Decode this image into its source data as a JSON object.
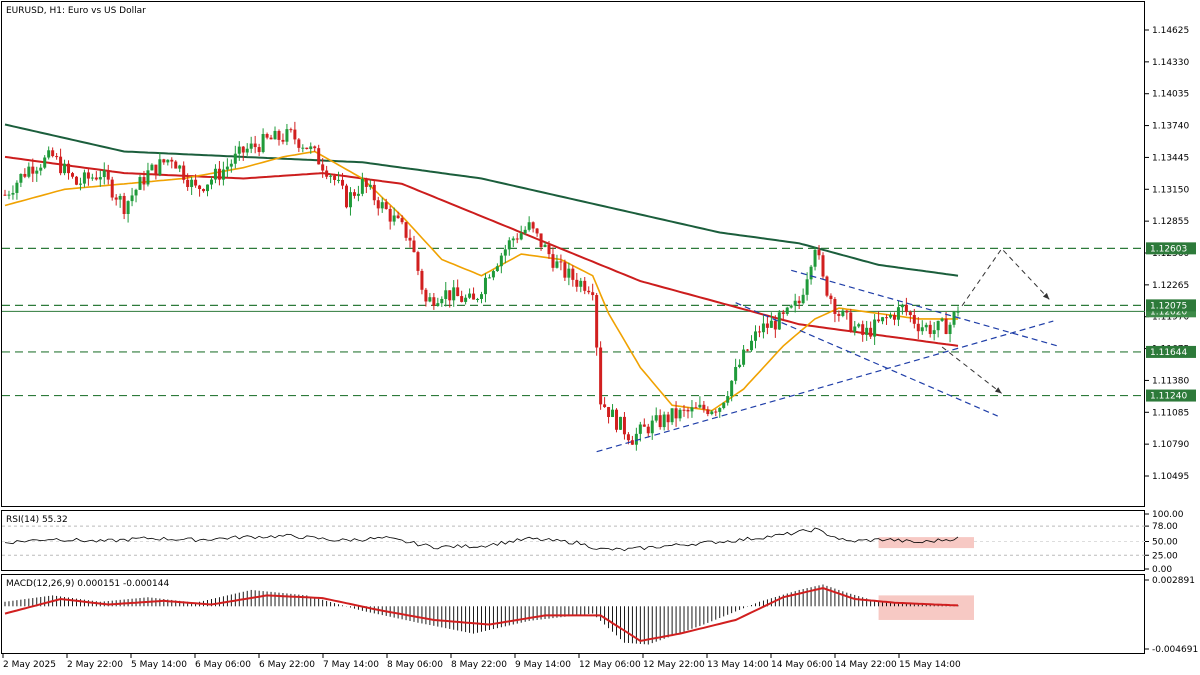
{
  "chart_data": {
    "type": "candlestick",
    "title": "EURUSD, H1:  Euro vs US Dollar",
    "colors": {
      "up": "#1f9a3a",
      "down": "#d11f1f",
      "ma_fast": "#f0a202",
      "ma_mid": "#cc1d1d",
      "ma_slow": "#1b5e3c",
      "trend": "#1f3ea8",
      "level": "#2d7a3a",
      "macd_signal": "#d11f1f",
      "highlight": "#f7c9c4"
    },
    "price_axis": {
      "range": [
        1.1035,
        1.148
      ],
      "ticks": [
        "1.14625",
        "1.14330",
        "1.14035",
        "1.13740",
        "1.13445",
        "1.13150",
        "1.12855",
        "1.12560",
        "1.12265",
        "1.11970",
        "1.11675",
        "1.11380",
        "1.11085",
        "1.10790",
        "1.10495"
      ]
    },
    "levels": [
      {
        "value": 1.12603,
        "label": "1.12603"
      },
      {
        "value": 1.12075,
        "label": "1.12075"
      },
      {
        "value": 1.11644,
        "label": "1.11644"
      },
      {
        "value": 1.1124,
        "label": "1.11240"
      }
    ],
    "current_price": {
      "value": 1.1202,
      "label": "1.12020"
    },
    "time_labels": [
      "2 May 2025",
      "2 May 22:00",
      "5 May 14:00",
      "6 May 06:00",
      "6 May 22:00",
      "7 May 14:00",
      "8 May 06:00",
      "8 May 22:00",
      "9 May 14:00",
      "12 May 06:00",
      "12 May 22:00",
      "13 May 14:00",
      "14 May 06:00",
      "14 May 22:00",
      "15 May 14:00"
    ],
    "price_anchors": [
      [
        0,
        1.131
      ],
      [
        6,
        1.1335
      ],
      [
        12,
        1.1345
      ],
      [
        18,
        1.132
      ],
      [
        24,
        1.133
      ],
      [
        30,
        1.13
      ],
      [
        36,
        1.133
      ],
      [
        42,
        1.1345
      ],
      [
        48,
        1.1315
      ],
      [
        54,
        1.133
      ],
      [
        60,
        1.135
      ],
      [
        66,
        1.136
      ],
      [
        72,
        1.1365
      ],
      [
        76,
        1.1355
      ],
      [
        82,
        1.133
      ],
      [
        86,
        1.1305
      ],
      [
        90,
        1.132
      ],
      [
        96,
        1.1295
      ],
      [
        102,
        1.127
      ],
      [
        106,
        1.121
      ],
      [
        110,
        1.122
      ],
      [
        114,
        1.1215
      ],
      [
        118,
        1.121
      ],
      [
        122,
        1.124
      ],
      [
        128,
        1.127
      ],
      [
        132,
        1.128
      ],
      [
        136,
        1.126
      ],
      [
        140,
        1.124
      ],
      [
        144,
        1.123
      ],
      [
        148,
        1.1225
      ],
      [
        150,
        1.112
      ],
      [
        154,
        1.11
      ],
      [
        158,
        1.1085
      ],
      [
        162,
        1.1095
      ],
      [
        168,
        1.1105
      ],
      [
        174,
        1.111
      ],
      [
        180,
        1.1115
      ],
      [
        186,
        1.116
      ],
      [
        190,
        1.1185
      ],
      [
        196,
        1.1195
      ],
      [
        200,
        1.121
      ],
      [
        204,
        1.1265
      ],
      [
        206,
        1.123
      ],
      [
        210,
        1.12
      ],
      [
        216,
        1.118
      ],
      [
        222,
        1.1195
      ],
      [
        226,
        1.1205
      ],
      [
        230,
        1.119
      ],
      [
        234,
        1.1185
      ],
      [
        238,
        1.119
      ],
      [
        240,
        1.1205
      ]
    ],
    "ma_fast": [
      [
        0,
        1.13
      ],
      [
        15,
        1.1315
      ],
      [
        30,
        1.132
      ],
      [
        45,
        1.1325
      ],
      [
        60,
        1.1335
      ],
      [
        70,
        1.1345
      ],
      [
        78,
        1.135
      ],
      [
        90,
        1.1325
      ],
      [
        100,
        1.129
      ],
      [
        110,
        1.125
      ],
      [
        120,
        1.1235
      ],
      [
        130,
        1.1255
      ],
      [
        140,
        1.125
      ],
      [
        148,
        1.1235
      ],
      [
        152,
        1.12
      ],
      [
        160,
        1.115
      ],
      [
        168,
        1.1115
      ],
      [
        178,
        1.111
      ],
      [
        186,
        1.113
      ],
      [
        196,
        1.117
      ],
      [
        204,
        1.1195
      ],
      [
        210,
        1.1205
      ],
      [
        220,
        1.12
      ],
      [
        230,
        1.1195
      ],
      [
        240,
        1.1195
      ]
    ],
    "ma_mid": [
      [
        0,
        1.1345
      ],
      [
        30,
        1.133
      ],
      [
        60,
        1.1325
      ],
      [
        80,
        1.133
      ],
      [
        100,
        1.132
      ],
      [
        120,
        1.129
      ],
      [
        140,
        1.126
      ],
      [
        160,
        1.123
      ],
      [
        180,
        1.121
      ],
      [
        200,
        1.119
      ],
      [
        220,
        1.118
      ],
      [
        240,
        1.117
      ]
    ],
    "ma_slow": [
      [
        0,
        1.1375
      ],
      [
        30,
        1.135
      ],
      [
        60,
        1.1345
      ],
      [
        90,
        1.134
      ],
      [
        120,
        1.1325
      ],
      [
        150,
        1.13
      ],
      [
        180,
        1.1275
      ],
      [
        200,
        1.1265
      ],
      [
        220,
        1.1245
      ],
      [
        240,
        1.1235
      ]
    ],
    "rsi": {
      "label": "RSI(14) 55.32",
      "ticks": [
        "100.00",
        "78.00",
        "50.00",
        "25.00",
        "0.00"
      ],
      "levels": [
        78,
        25
      ],
      "anchors": [
        [
          0,
          48
        ],
        [
          12,
          55
        ],
        [
          24,
          50
        ],
        [
          36,
          56
        ],
        [
          48,
          53
        ],
        [
          60,
          58
        ],
        [
          72,
          60
        ],
        [
          84,
          52
        ],
        [
          96,
          56
        ],
        [
          108,
          40
        ],
        [
          120,
          42
        ],
        [
          132,
          55
        ],
        [
          144,
          48
        ],
        [
          150,
          36
        ],
        [
          156,
          35
        ],
        [
          170,
          44
        ],
        [
          184,
          52
        ],
        [
          196,
          62
        ],
        [
          204,
          72
        ],
        [
          212,
          50
        ],
        [
          222,
          54
        ],
        [
          230,
          48
        ],
        [
          240,
          56
        ]
      ]
    },
    "macd": {
      "label": "MACD(12,26,9) 0.000151 -0.000144",
      "ticks": [
        "0.002891",
        "-0.004691"
      ],
      "hist_anchors": [
        [
          0,
          0.0005
        ],
        [
          12,
          0.0012
        ],
        [
          24,
          0.0005
        ],
        [
          36,
          0.001
        ],
        [
          48,
          0.0004
        ],
        [
          62,
          0.0018
        ],
        [
          76,
          0.0012
        ],
        [
          90,
          -0.0005
        ],
        [
          104,
          -0.0018
        ],
        [
          118,
          -0.003
        ],
        [
          132,
          -0.0016
        ],
        [
          148,
          -0.0008
        ],
        [
          156,
          -0.004
        ],
        [
          162,
          -0.0042
        ],
        [
          176,
          -0.002
        ],
        [
          190,
          0.0005
        ],
        [
          200,
          0.0018
        ],
        [
          206,
          0.0024
        ],
        [
          212,
          0.0015
        ],
        [
          220,
          0.0005
        ],
        [
          232,
          0.0003
        ],
        [
          240,
          0.0001
        ]
      ],
      "signal_anchors": [
        [
          0,
          -0.0008
        ],
        [
          14,
          0.0008
        ],
        [
          26,
          0.0002
        ],
        [
          40,
          0.0006
        ],
        [
          52,
          0.0002
        ],
        [
          66,
          0.0012
        ],
        [
          80,
          0.0009
        ],
        [
          94,
          -0.0004
        ],
        [
          108,
          -0.0015
        ],
        [
          122,
          -0.002
        ],
        [
          136,
          -0.001
        ],
        [
          150,
          -0.001
        ],
        [
          160,
          -0.0038
        ],
        [
          170,
          -0.003
        ],
        [
          184,
          -0.0015
        ],
        [
          196,
          0.001
        ],
        [
          206,
          0.002
        ],
        [
          214,
          0.0008
        ],
        [
          224,
          0.0004
        ],
        [
          234,
          0.0002
        ],
        [
          240,
          0.0001
        ]
      ]
    }
  }
}
